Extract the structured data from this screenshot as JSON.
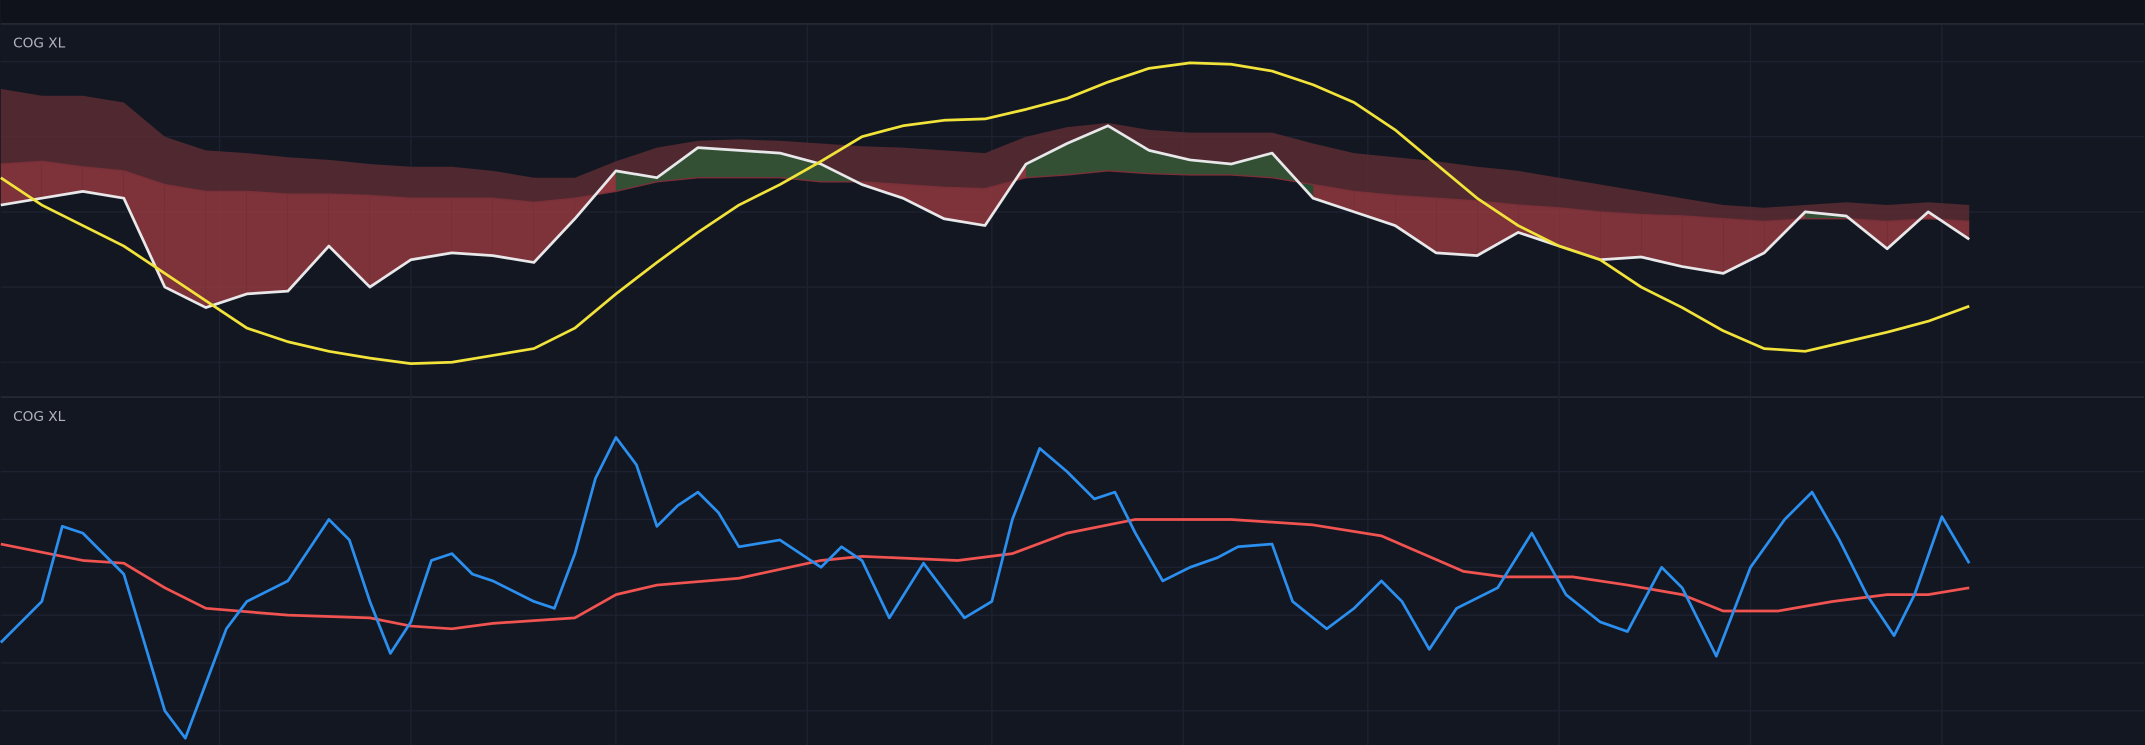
{
  "chart_data": [
    {
      "type": "line",
      "title": "COG XL",
      "xlim": [
        0,
        1568
      ],
      "ylim": [
        0,
        273
      ],
      "fill_colors": {
        "above": "#2c5a36",
        "below": "#9a3a40",
        "band": "#5a2c33"
      },
      "x": [
        0,
        30,
        60,
        90,
        120,
        150,
        180,
        210,
        240,
        270,
        300,
        330,
        360,
        390,
        420,
        450,
        480,
        510,
        540,
        570,
        600,
        630,
        660,
        690,
        720,
        750,
        780,
        810,
        840,
        870,
        900,
        930,
        960,
        990,
        1020,
        1050,
        1080,
        1110,
        1140,
        1170,
        1200,
        1230,
        1260,
        1290,
        1320,
        1350,
        1380,
        1410,
        1440
      ],
      "series": [
        {
          "kind": "band",
          "color": "#5a2c33",
          "values": [
            225,
            220,
            220,
            215,
            190,
            180,
            178,
            175,
            173,
            170,
            168,
            168,
            165,
            160,
            160,
            172,
            182,
            187,
            188,
            187,
            185,
            183,
            182,
            180,
            178,
            190,
            197,
            200,
            195,
            193,
            193,
            193,
            185,
            178,
            175,
            172,
            168,
            165,
            160,
            155,
            150,
            145,
            140,
            138,
            140,
            142,
            140,
            142,
            140
          ]
        },
        {
          "kind": "mid",
          "color": "#7a3038",
          "values": [
            170,
            172,
            168,
            165,
            155,
            150,
            150,
            148,
            148,
            147,
            145,
            145,
            145,
            142,
            145,
            150,
            157,
            160,
            160,
            160,
            157,
            157,
            155,
            153,
            152,
            160,
            162,
            165,
            163,
            162,
            162,
            160,
            155,
            150,
            147,
            145,
            143,
            140,
            138,
            135,
            133,
            132,
            130,
            128,
            130,
            130,
            128,
            130,
            128
          ]
        },
        {
          "kind": "line",
          "color": "#e8e8ea",
          "values": [
            140,
            145,
            150,
            145,
            80,
            65,
            75,
            77,
            110,
            80,
            100,
            105,
            103,
            98,
            130,
            165,
            160,
            182,
            180,
            178,
            170,
            155,
            145,
            130,
            125,
            170,
            185,
            198,
            180,
            173,
            170,
            178,
            145,
            135,
            125,
            105,
            103,
            120,
            110,
            100,
            102,
            95,
            90,
            105,
            135,
            132,
            108,
            135,
            115
          ]
        },
        {
          "kind": "line",
          "color": "#f2e33a",
          "values": [
            160,
            140,
            125,
            110,
            90,
            70,
            50,
            40,
            33,
            28,
            24,
            25,
            30,
            35,
            50,
            75,
            98,
            120,
            140,
            155,
            172,
            190,
            198,
            202,
            203,
            210,
            218,
            230,
            240,
            244,
            243,
            238,
            228,
            215,
            195,
            170,
            145,
            125,
            110,
            100,
            80,
            65,
            48,
            35,
            33,
            40,
            47,
            55,
            66
          ]
        }
      ]
    },
    {
      "type": "line",
      "title": "COG XL",
      "xlim": [
        0,
        1568
      ],
      "ylim": [
        0,
        255
      ],
      "series": [
        {
          "kind": "line",
          "color": "#f05350",
          "x": [
            0,
            60,
            90,
            120,
            150,
            210,
            270,
            300,
            330,
            360,
            420,
            450,
            480,
            540,
            600,
            630,
            700,
            740,
            780,
            830,
            900,
            960,
            1010,
            1040,
            1070,
            1100,
            1150,
            1190,
            1230,
            1260,
            1300,
            1340,
            1380,
            1410,
            1440
          ],
          "values": [
            147,
            135,
            133,
            115,
            100,
            95,
            93,
            87,
            85,
            89,
            93,
            110,
            117,
            122,
            135,
            138,
            135,
            140,
            155,
            165,
            165,
            161,
            153,
            140,
            127,
            123,
            123,
            117,
            110,
            98,
            98,
            105,
            110,
            110,
            115
          ]
        },
        {
          "kind": "line",
          "color": "#2b8fef",
          "x": [
            0,
            30,
            45,
            60,
            90,
            120,
            135,
            150,
            165,
            180,
            210,
            240,
            255,
            270,
            285,
            300,
            315,
            330,
            345,
            360,
            390,
            405,
            420,
            435,
            450,
            465,
            480,
            495,
            510,
            525,
            540,
            570,
            600,
            615,
            630,
            650,
            675,
            705,
            725,
            740,
            760,
            780,
            800,
            815,
            830,
            850,
            870,
            890,
            905,
            930,
            945,
            970,
            990,
            1010,
            1025,
            1045,
            1065,
            1095,
            1120,
            1145,
            1170,
            1190,
            1215,
            1230,
            1255,
            1280,
            1305,
            1325,
            1345,
            1365,
            1385,
            1400,
            1420,
            1440
          ],
          "values": [
            75,
            105,
            160,
            155,
            125,
            25,
            5,
            45,
            85,
            105,
            120,
            165,
            150,
            105,
            67,
            90,
            135,
            140,
            125,
            120,
            105,
            100,
            140,
            195,
            225,
            205,
            160,
            175,
            185,
            170,
            145,
            150,
            130,
            145,
            135,
            93,
            133,
            93,
            105,
            165,
            217,
            200,
            180,
            185,
            155,
            120,
            130,
            137,
            145,
            147,
            105,
            85,
            100,
            120,
            105,
            70,
            100,
            115,
            155,
            110,
            90,
            83,
            130,
            115,
            65,
            130,
            165,
            185,
            150,
            110,
            80,
            110,
            167,
            133
          ]
        }
      ]
    }
  ]
}
